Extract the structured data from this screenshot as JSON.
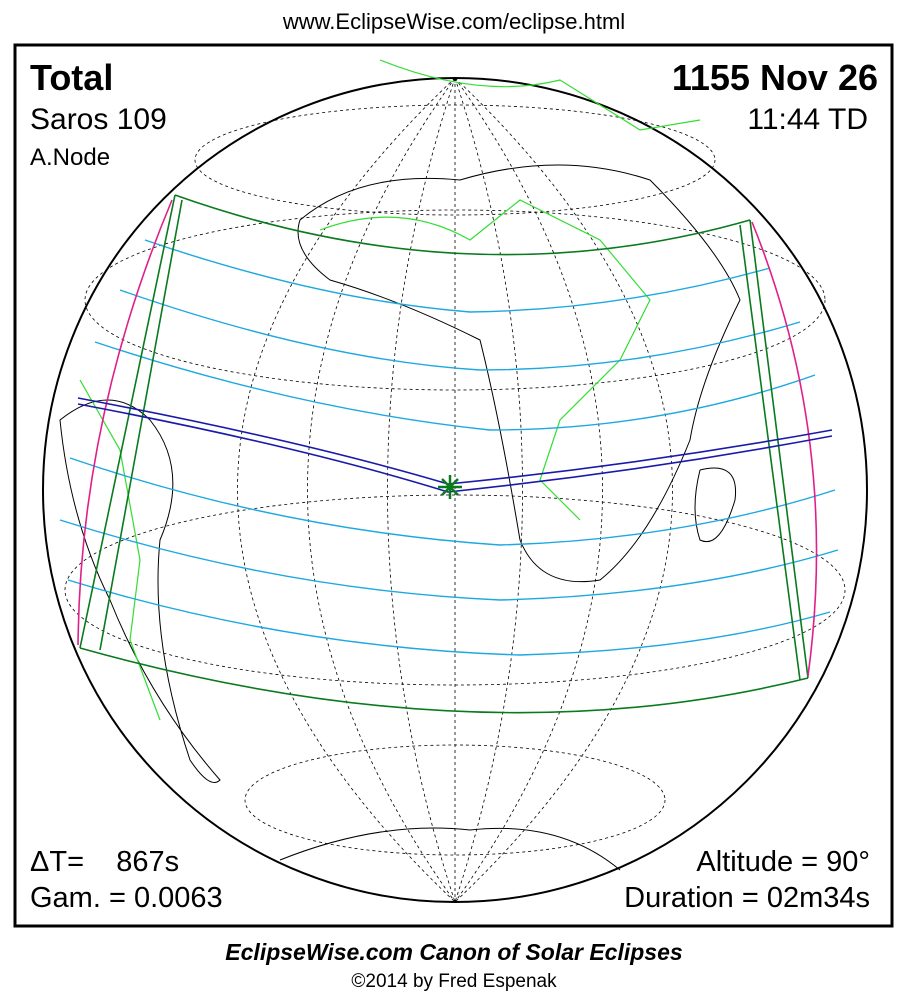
{
  "header": {
    "url": "www.EclipseWise.com/eclipse.html"
  },
  "panel": {
    "top_left": {
      "type": "Total",
      "saros": "Saros 109",
      "node": "A.Node"
    },
    "top_right": {
      "date": "1155 Nov 26",
      "time": "11:44 TD"
    },
    "bottom_left": {
      "delta_t": "ΔT=    867s",
      "gamma": "Gam. = 0.0063"
    },
    "bottom_right": {
      "altitude": "Altitude = 90°",
      "duration": "Duration = 02m34s"
    }
  },
  "footer": {
    "title": "EclipseWise.com Canon of Solar Eclipses",
    "credit": "©2014 by Fred Espenak"
  }
}
